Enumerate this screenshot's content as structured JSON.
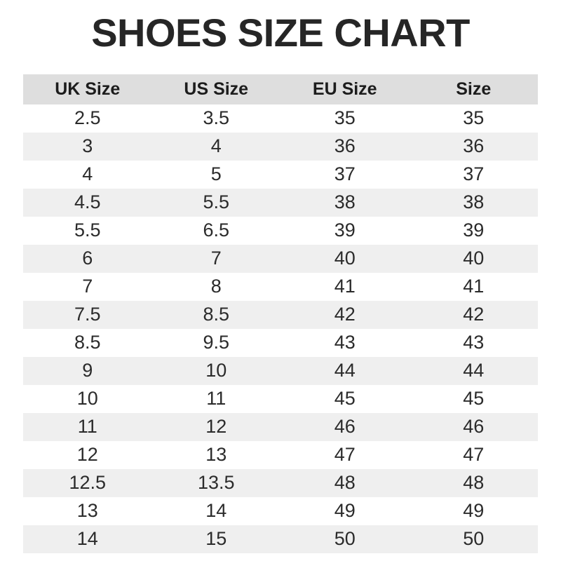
{
  "page": {
    "title": "SHOES SIZE CHART"
  },
  "colors": {
    "title_text": "#262626",
    "header_bg": "#dedede",
    "row_alt_bg": "#efefef",
    "row_bg": "#ffffff",
    "cell_text": "#2b2b2b"
  },
  "chart_data": {
    "type": "table",
    "title": "SHOES SIZE CHART",
    "columns": [
      "UK Size",
      "US Size",
      "EU Size",
      "Size"
    ],
    "rows": [
      [
        "2.5",
        "3.5",
        "35",
        "35"
      ],
      [
        "3",
        "4",
        "36",
        "36"
      ],
      [
        "4",
        "5",
        "37",
        "37"
      ],
      [
        "4.5",
        "5.5",
        "38",
        "38"
      ],
      [
        "5.5",
        "6.5",
        "39",
        "39"
      ],
      [
        "6",
        "7",
        "40",
        "40"
      ],
      [
        "7",
        "8",
        "41",
        "41"
      ],
      [
        "7.5",
        "8.5",
        "42",
        "42"
      ],
      [
        "8.5",
        "9.5",
        "43",
        "43"
      ],
      [
        "9",
        "10",
        "44",
        "44"
      ],
      [
        "10",
        "11",
        "45",
        "45"
      ],
      [
        "11",
        "12",
        "46",
        "46"
      ],
      [
        "12",
        "13",
        "47",
        "47"
      ],
      [
        "12.5",
        "13.5",
        "48",
        "48"
      ],
      [
        "13",
        "14",
        "49",
        "49"
      ],
      [
        "14",
        "15",
        "50",
        "50"
      ]
    ],
    "layout": {
      "striped": true,
      "first_data_row_background": "white",
      "columns_equal_width": true
    }
  }
}
